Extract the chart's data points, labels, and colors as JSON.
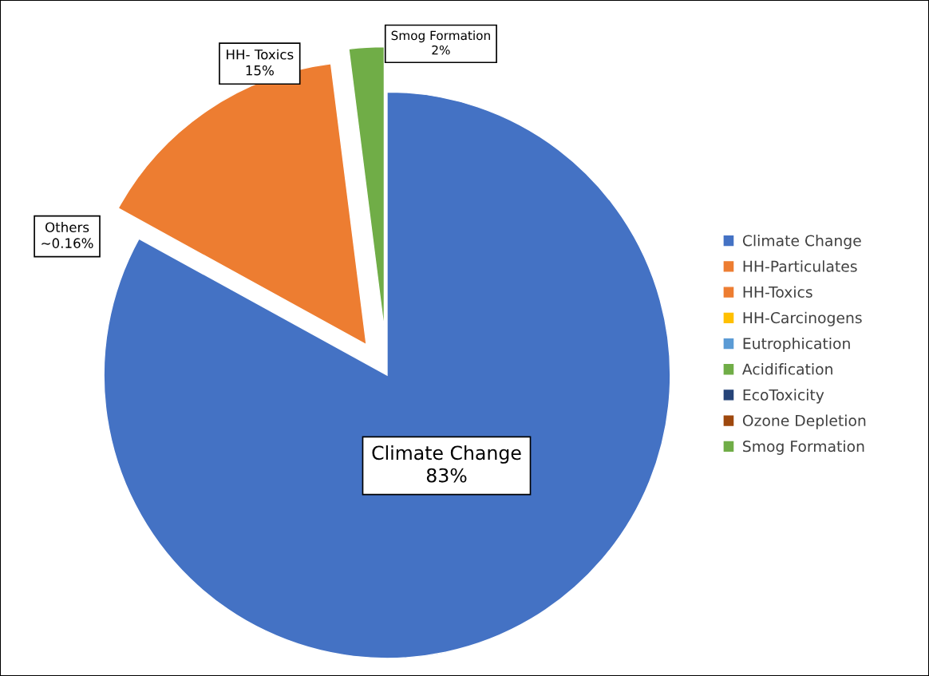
{
  "chart_data": {
    "type": "pie",
    "categories": [
      "Climate Change",
      "HH-Particulates",
      "HH-Toxics",
      "HH-Carcinogens",
      "Eutrophication",
      "Acidification",
      "EcoToxicity",
      "Ozone Depletion",
      "Smog Formation"
    ],
    "values": [
      83,
      null,
      15,
      null,
      null,
      null,
      null,
      null,
      2
    ],
    "colors": [
      "#4472c4",
      "#ed7d31",
      "#ed7d31",
      "#ffc000",
      "#5b9bd5",
      "#70ad47",
      "#264478",
      "#9e480e",
      "#70ad47"
    ],
    "value_labels": [
      "Climate Change\n83%",
      null,
      "HH- Toxics\n15%",
      null,
      null,
      null,
      null,
      null,
      "Smog Formation\n2%"
    ],
    "annotations": [
      "Others\n~0.16%"
    ],
    "legend": "right"
  }
}
